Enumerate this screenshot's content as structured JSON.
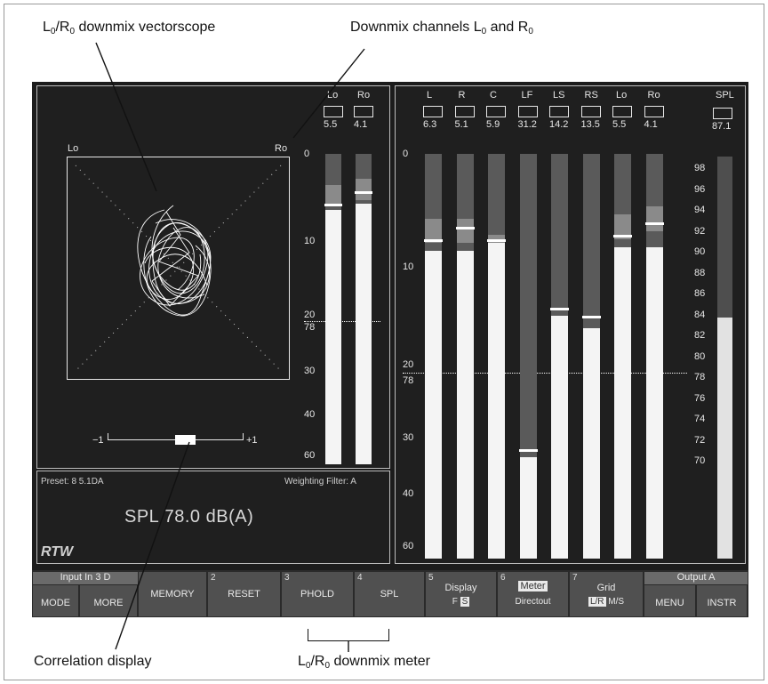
{
  "annotations": {
    "vectorscope": {
      "pre": "L",
      "sub1": "0",
      "mid": "/R",
      "sub2": "0",
      "post": " downmix vectorscope"
    },
    "downmix_channels": {
      "pre": "Downmix channels L",
      "sub1": "0",
      "mid": " and R",
      "sub2": "0"
    },
    "correlation": "Correlation display",
    "downmix_meter": {
      "pre": "L",
      "sub1": "0",
      "mid": "/R",
      "sub2": "0",
      "post": " downmix meter"
    }
  },
  "vectorscope": {
    "left_label": "Lo",
    "right_label": "Ro"
  },
  "correlation_display": {
    "min": "−1",
    "max": "+1",
    "value": 0.15
  },
  "left_meter": {
    "scale": [
      "0",
      "10",
      "20",
      "30",
      "40",
      "60"
    ],
    "ref_label": "78",
    "channels": [
      {
        "name": "Lo",
        "value": "5.5",
        "level": 0.82,
        "peak": 0.84,
        "gray": 0.9
      },
      {
        "name": "Ro",
        "value": "4.1",
        "level": 0.84,
        "peak": 0.88,
        "gray": 0.92
      }
    ]
  },
  "right_meter": {
    "scale": [
      "0",
      "10",
      "20",
      "30",
      "40",
      "60"
    ],
    "ref_label": "78",
    "channels": [
      {
        "name": "L",
        "value": "6.3",
        "level": 0.76,
        "peak": 0.79,
        "gray": 0.84
      },
      {
        "name": "R",
        "value": "5.1",
        "level": 0.76,
        "peak": 0.82,
        "gray": 0.84
      },
      {
        "name": "C",
        "value": "5.9",
        "level": 0.78,
        "peak": 0.79,
        "gray": 0.8
      },
      {
        "name": "LF",
        "value": "31.2",
        "level": 0.25,
        "peak": 0.27,
        "gray": 0.25
      },
      {
        "name": "LS",
        "value": "14.2",
        "level": 0.6,
        "peak": 0.62,
        "gray": 0.6
      },
      {
        "name": "RS",
        "value": "13.5",
        "level": 0.57,
        "peak": 0.6,
        "gray": 0.57
      },
      {
        "name": "Lo",
        "value": "5.5",
        "level": 0.77,
        "peak": 0.8,
        "gray": 0.85
      },
      {
        "name": "Ro",
        "value": "4.1",
        "level": 0.77,
        "peak": 0.83,
        "gray": 0.87
      }
    ]
  },
  "spl_meter": {
    "name": "SPL",
    "value": "87.1",
    "scale": [
      "98",
      "96",
      "94",
      "92",
      "90",
      "88",
      "86",
      "84",
      "82",
      "80",
      "78",
      "76",
      "74",
      "72",
      "70"
    ],
    "level": 0.6
  },
  "info": {
    "preset": "Preset: 8 5.1DA",
    "weighting": "Weighting Filter: A",
    "spl_readout": "SPL  78.0  dB(A)",
    "logo": "RTW"
  },
  "softkeys": {
    "input_header": "Input In 3 D",
    "output_header": "Output A",
    "keys": [
      {
        "num": "",
        "label": "MODE"
      },
      {
        "num": "",
        "label": "MORE"
      },
      {
        "num": "",
        "label": "MEMORY"
      },
      {
        "num": "2",
        "label": "RESET"
      },
      {
        "num": "3",
        "label": "PHOLD"
      },
      {
        "num": "4",
        "label": "SPL"
      },
      {
        "num": "5",
        "label": "Display",
        "sub_a": "F",
        "sub_b": "S"
      },
      {
        "num": "6",
        "label": "Meter",
        "sub": "Directout"
      },
      {
        "num": "7",
        "label": "Grid",
        "sub_a": "L/R",
        "sub_b": "M/S"
      },
      {
        "num": "",
        "label": "MENU"
      },
      {
        "num": "",
        "label": "INSTR"
      }
    ]
  }
}
